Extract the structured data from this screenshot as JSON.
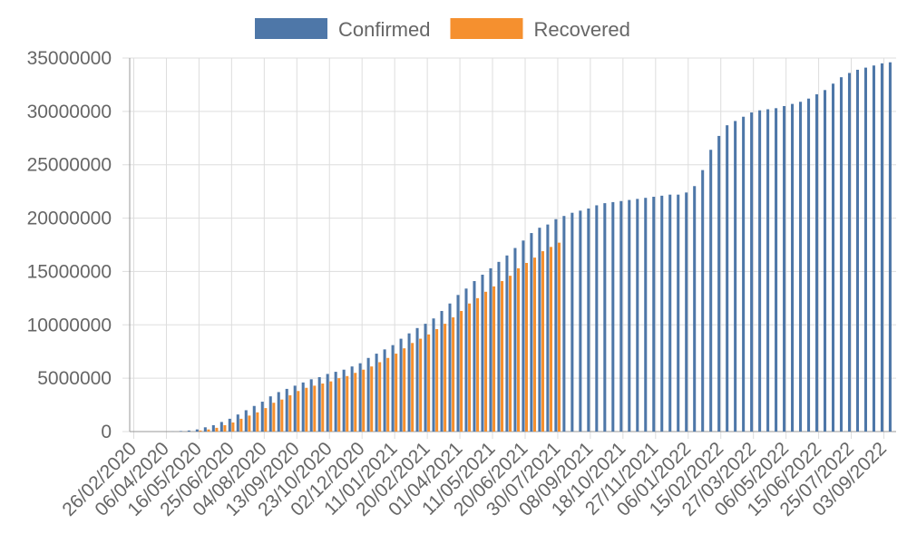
{
  "chart_data": {
    "type": "bar",
    "categories": [
      "26/02/2020",
      null,
      null,
      null,
      "06/04/2020",
      null,
      null,
      null,
      "16/05/2020",
      null,
      null,
      null,
      "25/06/2020",
      null,
      null,
      null,
      "04/08/2020",
      null,
      null,
      null,
      "13/09/2020",
      null,
      null,
      null,
      "23/10/2020",
      null,
      null,
      null,
      "02/12/2020",
      null,
      null,
      null,
      "11/01/2021",
      null,
      null,
      null,
      "20/02/2021",
      null,
      null,
      null,
      "01/04/2021",
      null,
      null,
      null,
      "11/05/2021",
      null,
      null,
      null,
      "20/06/2021",
      null,
      null,
      null,
      "30/07/2021",
      null,
      null,
      null,
      "08/09/2021",
      null,
      null,
      null,
      "18/10/2021",
      null,
      null,
      null,
      "27/11/2021",
      null,
      null,
      null,
      "06/01/2022",
      null,
      null,
      null,
      "15/02/2022",
      null,
      null,
      null,
      "27/03/2022",
      null,
      null,
      null,
      "06/05/2022",
      null,
      null,
      null,
      "15/06/2022",
      null,
      null,
      null,
      "25/07/2022",
      null,
      null,
      null,
      "03/09/2022",
      null
    ],
    "series": [
      {
        "name": "Confirmed",
        "color": "#4e77a8",
        "values": [
          0,
          0,
          0,
          0,
          0,
          10000,
          50000,
          100000,
          200000,
          400000,
          600000,
          900000,
          1200000,
          1600000,
          2000000,
          2400000,
          2800000,
          3300000,
          3700000,
          4000000,
          4300000,
          4600000,
          4900000,
          5100000,
          5400000,
          5600000,
          5800000,
          6100000,
          6400000,
          6900000,
          7300000,
          7700000,
          8100000,
          8700000,
          9200000,
          9700000,
          10100000,
          10600000,
          11300000,
          12000000,
          12800000,
          13400000,
          14100000,
          14700000,
          15300000,
          15900000,
          16500000,
          17200000,
          17900000,
          18600000,
          19100000,
          19400000,
          19900000,
          20200000,
          20500000,
          20700000,
          20900000,
          21200000,
          21400000,
          21500000,
          21600000,
          21700000,
          21800000,
          21900000,
          22000000,
          22100000,
          22200000,
          22200000,
          22400000,
          23000000,
          24500000,
          26400000,
          27700000,
          28700000,
          29100000,
          29500000,
          29900000,
          30100000,
          30200000,
          30300000,
          30500000,
          30700000,
          30900000,
          31200000,
          31600000,
          32000000,
          32600000,
          33200000,
          33600000,
          33900000,
          34100000,
          34300000,
          34500000,
          34600000
        ]
      },
      {
        "name": "Recovered",
        "color": "#f5902f",
        "values": [
          0,
          0,
          0,
          0,
          0,
          0,
          0,
          0,
          100000,
          200000,
          350000,
          600000,
          850000,
          1200000,
          1500000,
          1800000,
          2200000,
          2700000,
          3000000,
          3400000,
          3800000,
          4100000,
          4300000,
          4500000,
          4700000,
          5000000,
          5200000,
          5500000,
          5800000,
          6100000,
          6500000,
          6900000,
          7300000,
          7800000,
          8300000,
          8700000,
          9100000,
          9600000,
          10100000,
          10700000,
          11300000,
          12000000,
          12500000,
          13100000,
          13600000,
          14100000,
          14600000,
          15300000,
          15800000,
          16300000,
          16900000,
          17300000,
          17700000,
          null,
          null,
          null,
          null,
          null,
          null,
          null,
          null,
          null,
          null,
          null,
          null,
          null,
          null,
          null,
          null,
          null,
          null,
          null,
          null,
          null,
          null,
          null,
          null,
          null,
          null,
          null,
          null,
          null,
          null,
          null,
          null,
          null,
          null,
          null,
          null,
          null,
          null,
          null,
          null,
          null
        ]
      }
    ],
    "ylim": [
      0,
      35000000
    ],
    "yticks": [
      0,
      5000000,
      10000000,
      15000000,
      20000000,
      25000000,
      30000000,
      35000000
    ],
    "grid": true,
    "legend": "top"
  }
}
